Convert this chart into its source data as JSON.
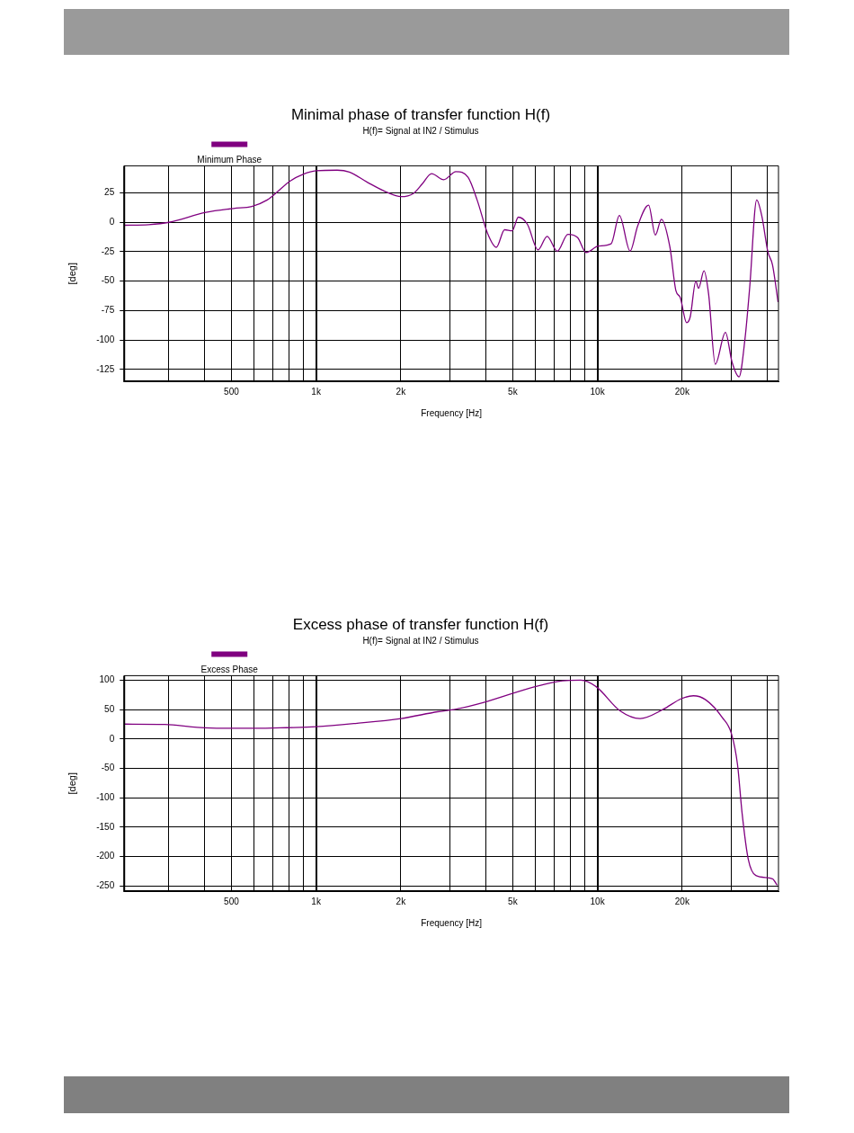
{
  "chart_data": [
    {
      "type": "line",
      "title": "Minimal phase of transfer function H(f)",
      "subtitle": "H(f)= Signal at IN2 / Stimulus",
      "xlabel": "Frequency [Hz]",
      "ylabel": "[deg]",
      "log": "x",
      "grid": true,
      "legend": "top left",
      "xlim": [
        208,
        44000
      ],
      "ylim": [
        -135,
        48
      ],
      "xticks": [
        {
          "value": 300,
          "label": null
        },
        {
          "value": 400,
          "label": null
        },
        500,
        {
          "value": 600,
          "label": null
        },
        {
          "value": 700,
          "label": null
        },
        {
          "value": 800,
          "label": null
        },
        {
          "value": 900,
          "label": null
        },
        {
          "value": 1000,
          "label": "1k"
        },
        {
          "value": 2000,
          "label": "2k"
        },
        {
          "value": 3000,
          "label": null
        },
        {
          "value": 4000,
          "label": null
        },
        {
          "value": 5000,
          "label": "5k"
        },
        {
          "value": 6000,
          "label": null
        },
        {
          "value": 7000,
          "label": null
        },
        {
          "value": 8000,
          "label": null
        },
        {
          "value": 9000,
          "label": null
        },
        {
          "value": 10000,
          "label": "10k"
        },
        {
          "value": 20000,
          "label": "20k"
        },
        {
          "value": 30000,
          "label": null
        },
        {
          "value": 40000,
          "label": null
        }
      ],
      "yticks": [
        25,
        0,
        -25,
        -50,
        -75,
        -100,
        -125
      ],
      "series": [
        {
          "name": "Minimum Phase",
          "color": "#800080",
          "x": [
            208,
            254,
            300,
            406,
            509,
            591,
            670,
            721,
            807,
            902,
            1000,
            1188,
            1313,
            1524,
            1770,
            2004,
            2215,
            2387,
            2572,
            2842,
            3141,
            3468,
            3735,
            4077,
            4371,
            4677,
            4977,
            5233,
            5638,
            6151,
            6625,
            7194,
            7852,
            8503,
            9120,
            10070,
            11184,
            11968,
            13061,
            13900,
            15200,
            16060,
            16880,
            18090,
            19010,
            19680,
            20750,
            21370,
            22370,
            22870,
            23920,
            24840,
            26230,
            28500,
            30090,
            31860,
            33480,
            34760,
            36810,
            38400,
            40340,
            41900,
            43850
          ],
          "values": [
            -2.5,
            -2,
            0,
            8.5,
            11.8,
            13.5,
            19,
            25,
            35,
            41,
            43.8,
            44.3,
            42.7,
            33.9,
            25.9,
            21.8,
            24.5,
            32.8,
            41.4,
            36.2,
            43,
            38.3,
            19,
            -9.9,
            -21.2,
            -6.3,
            -7.2,
            4.4,
            -1.7,
            -23.4,
            -11.9,
            -24.5,
            -10.2,
            -13,
            -25.6,
            -20.1,
            -18.2,
            5.8,
            -24.5,
            -3,
            14.6,
            -10.8,
            2.5,
            -21,
            -58.2,
            -63.7,
            -85.2,
            -80.2,
            -49.9,
            -56,
            -41.1,
            -61,
            -120.5,
            -93.4,
            -118.8,
            -131.2,
            -98.1,
            -55.4,
            19,
            5.2,
            -25.1,
            -36.1,
            -67.8
          ]
        }
      ]
    },
    {
      "type": "line",
      "title": "Excess phase of transfer function H(f)",
      "subtitle": "H(f)= Signal at IN2 / Stimulus",
      "xlabel": "Frequency [Hz]",
      "ylabel": "[deg]",
      "log": "x",
      "grid": true,
      "legend": "top left",
      "xlim": [
        208,
        44000
      ],
      "ylim": [
        -259,
        108
      ],
      "xticks": [
        {
          "value": 300,
          "label": null
        },
        {
          "value": 400,
          "label": null
        },
        500,
        {
          "value": 600,
          "label": null
        },
        {
          "value": 700,
          "label": null
        },
        {
          "value": 800,
          "label": null
        },
        {
          "value": 900,
          "label": null
        },
        {
          "value": 1000,
          "label": "1k"
        },
        {
          "value": 2000,
          "label": "2k"
        },
        {
          "value": 3000,
          "label": null
        },
        {
          "value": 4000,
          "label": null
        },
        {
          "value": 5000,
          "label": "5k"
        },
        {
          "value": 6000,
          "label": null
        },
        {
          "value": 7000,
          "label": null
        },
        {
          "value": 8000,
          "label": null
        },
        {
          "value": 9000,
          "label": null
        },
        {
          "value": 10000,
          "label": "10k"
        },
        {
          "value": 20000,
          "label": "20k"
        },
        {
          "value": 30000,
          "label": null
        },
        {
          "value": 40000,
          "label": null
        }
      ],
      "yticks": [
        100,
        50,
        0,
        -50,
        -100,
        -150,
        -200,
        -250
      ],
      "series": [
        {
          "name": "Excess Phase",
          "color": "#800080",
          "x": [
            208,
            290,
            378,
            461,
            606,
            787,
            1000,
            1379,
            2004,
            2704,
            3141,
            4029,
            6000,
            7514,
            8730,
            9890,
            12060,
            14180,
            17110,
            19860,
            21930,
            24220,
            27800,
            29950,
            31470,
            32680,
            34360,
            36560,
            41900,
            43510
          ],
          "values": [
            25.5,
            25,
            20,
            18.3,
            18.3,
            19.4,
            21,
            26.6,
            35,
            46.6,
            51,
            63.8,
            89.3,
            99.3,
            100.4,
            89.3,
            47.7,
            35,
            50.5,
            68.8,
            73.8,
            67.1,
            36.6,
            8.9,
            -43.8,
            -127,
            -204.7,
            -232.4,
            -238,
            -249
          ]
        }
      ]
    }
  ]
}
